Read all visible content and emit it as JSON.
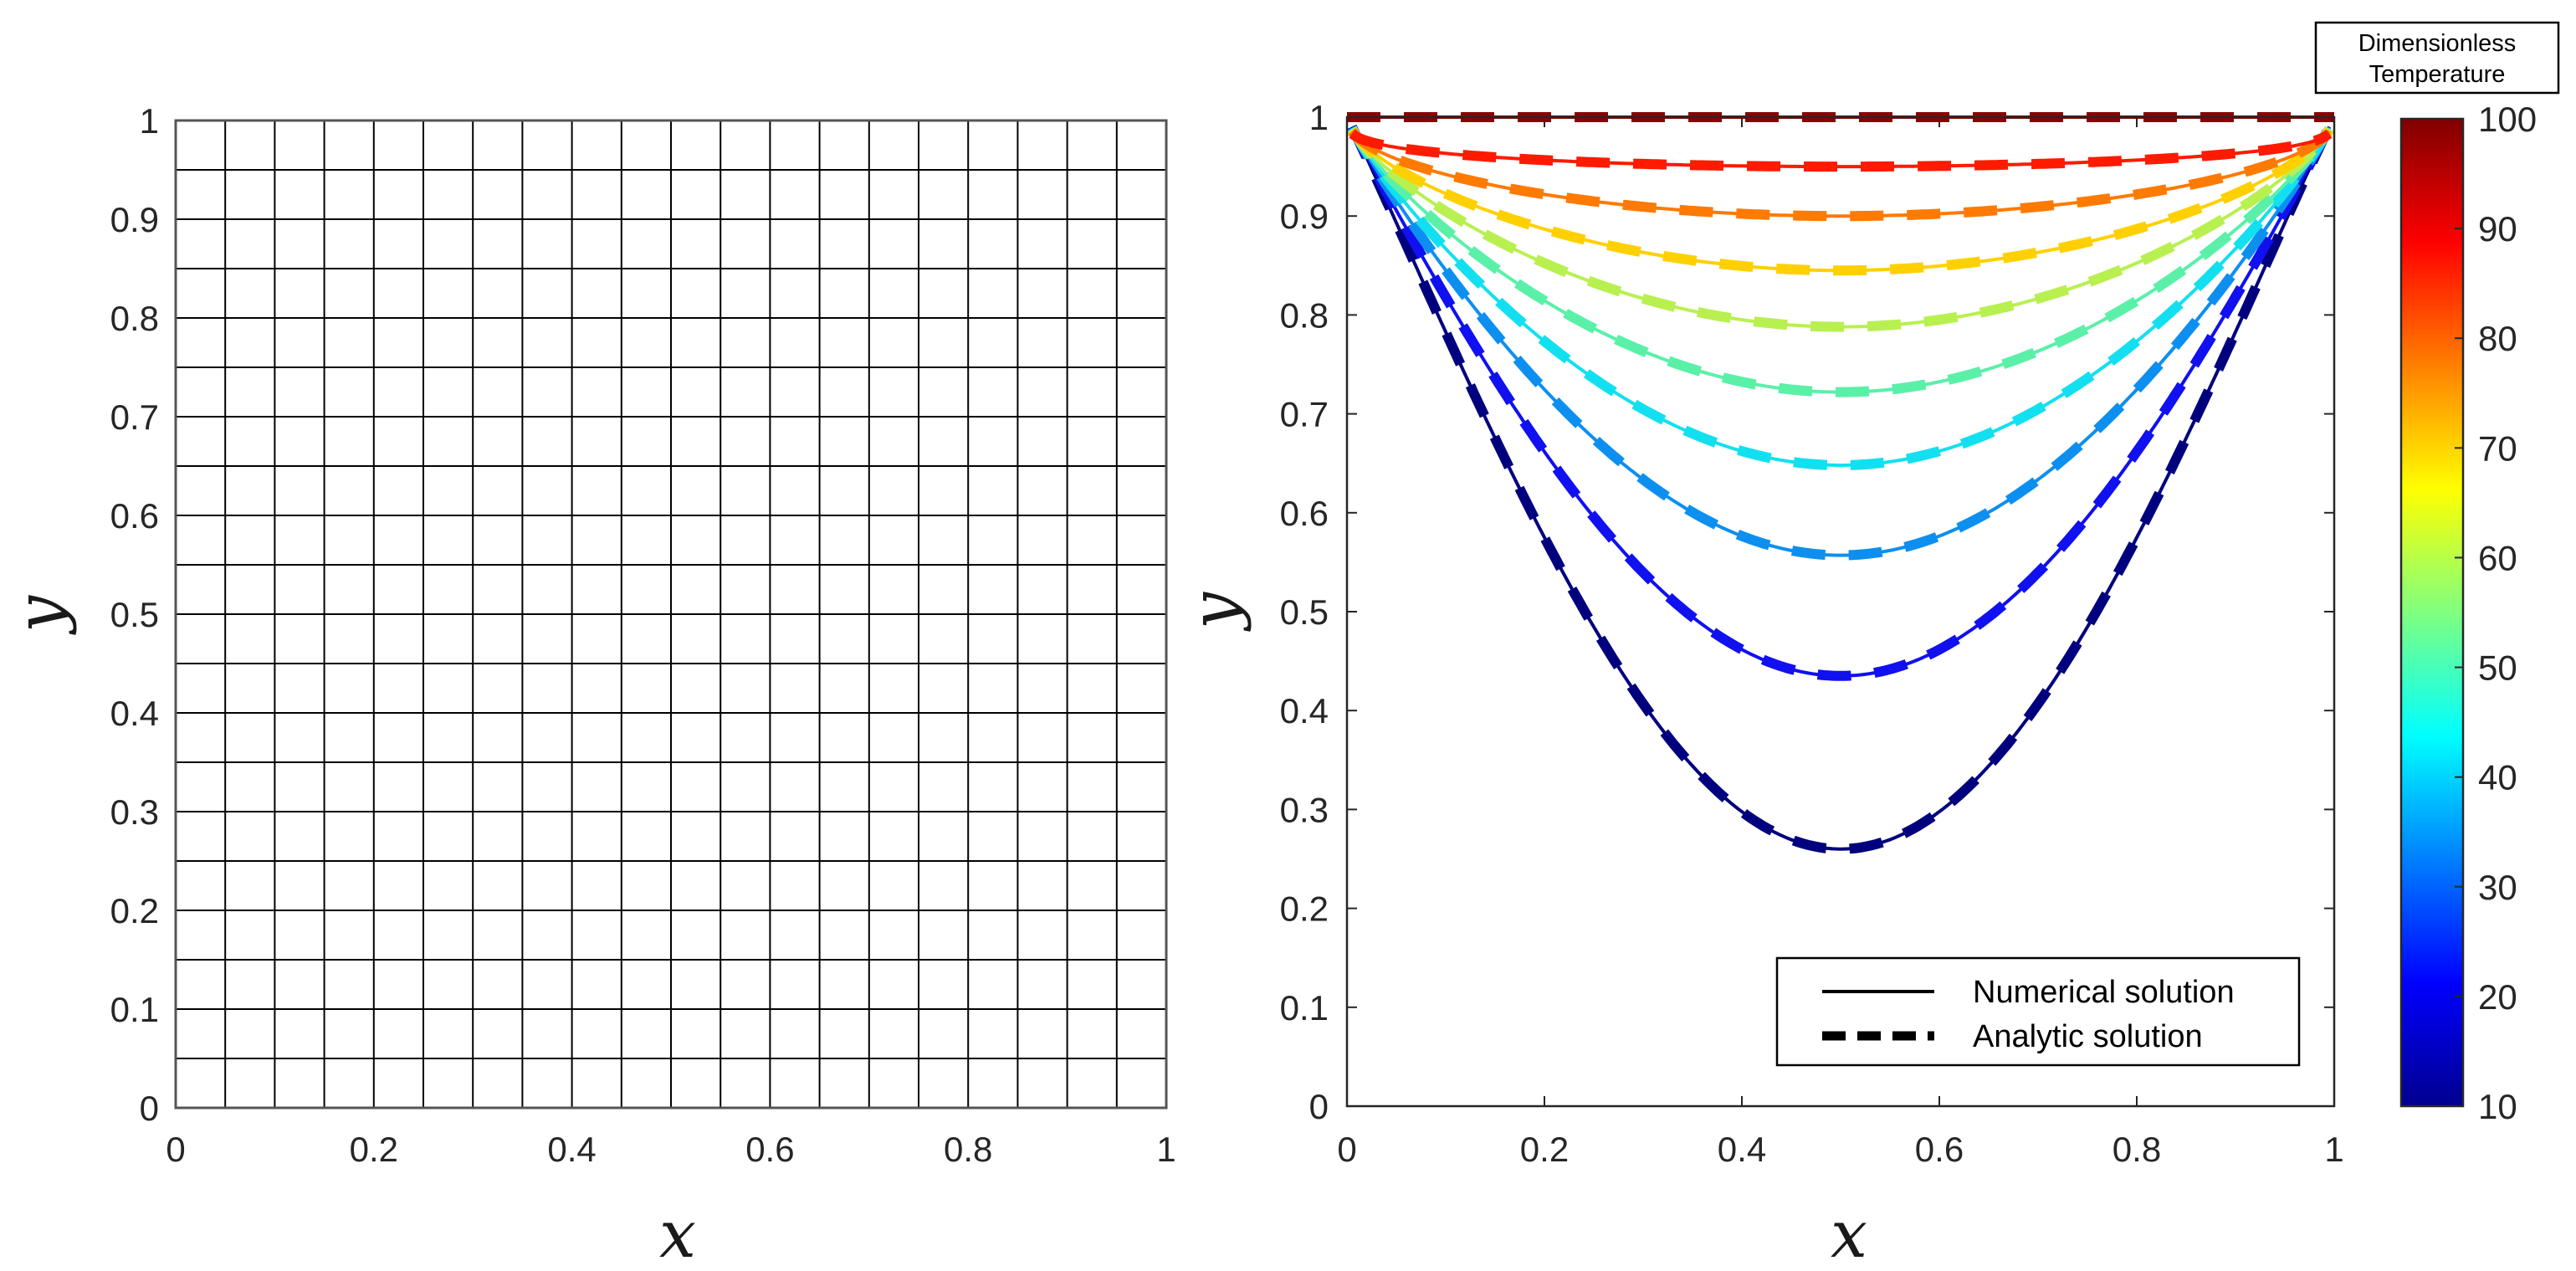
{
  "chart_data": [
    {
      "type": "heatmap",
      "title": "",
      "xlabel": "x",
      "ylabel": "y",
      "xlim": [
        0,
        1
      ],
      "ylim": [
        0,
        1
      ],
      "xticks": [
        "0",
        "0.2",
        "0.4",
        "0.6",
        "0.8",
        "1"
      ],
      "yticks": [
        "0",
        "0.1",
        "0.2",
        "0.3",
        "0.4",
        "0.5",
        "0.6",
        "0.7",
        "0.8",
        "0.9",
        "1"
      ],
      "grid": {
        "nx": 20,
        "ny": 20,
        "spacing": 0.05,
        "color": "#000000"
      }
    },
    {
      "type": "line",
      "title": "",
      "xlabel": "x",
      "ylabel": "y",
      "xlim": [
        0,
        1
      ],
      "ylim": [
        0,
        1
      ],
      "xticks": [
        "0",
        "0.2",
        "0.4",
        "0.6",
        "0.8",
        "1"
      ],
      "yticks": [
        "0",
        "0.1",
        "0.2",
        "0.3",
        "0.4",
        "0.5",
        "0.6",
        "0.7",
        "0.8",
        "0.9",
        "1"
      ],
      "contours": [
        {
          "level": 20,
          "color": "#00007e",
          "y_min": 0.26
        },
        {
          "level": 30,
          "color": "#1010f0",
          "y_min": 0.435
        },
        {
          "level": 40,
          "color": "#0d8ff0",
          "y_min": 0.557
        },
        {
          "level": 50,
          "color": "#12e0f0",
          "y_min": 0.648
        },
        {
          "level": 60,
          "color": "#5af0a8",
          "y_min": 0.722
        },
        {
          "level": 70,
          "color": "#b8f050",
          "y_min": 0.788
        },
        {
          "level": 80,
          "color": "#ffd000",
          "y_min": 0.845
        },
        {
          "level": 90,
          "color": "#ff7a00",
          "y_min": 0.9
        },
        {
          "level": 95,
          "color": "#ff1a00",
          "y_min": 0.95
        },
        {
          "level": 100,
          "color": "#8b0000",
          "y_min": 1.0
        }
      ],
      "legend": {
        "position": "bottom-right",
        "entries": [
          {
            "label": "Numerical solution",
            "style": "solid"
          },
          {
            "label": "Analytic solution",
            "style": "dashed"
          }
        ]
      },
      "colorbar": {
        "title_line1": "Dimensionless",
        "title_line2": "Temperature",
        "range": [
          10,
          100
        ],
        "ticks": [
          "10",
          "20",
          "30",
          "40",
          "50",
          "60",
          "70",
          "80",
          "90",
          "100"
        ],
        "colormap": "jet"
      }
    }
  ]
}
